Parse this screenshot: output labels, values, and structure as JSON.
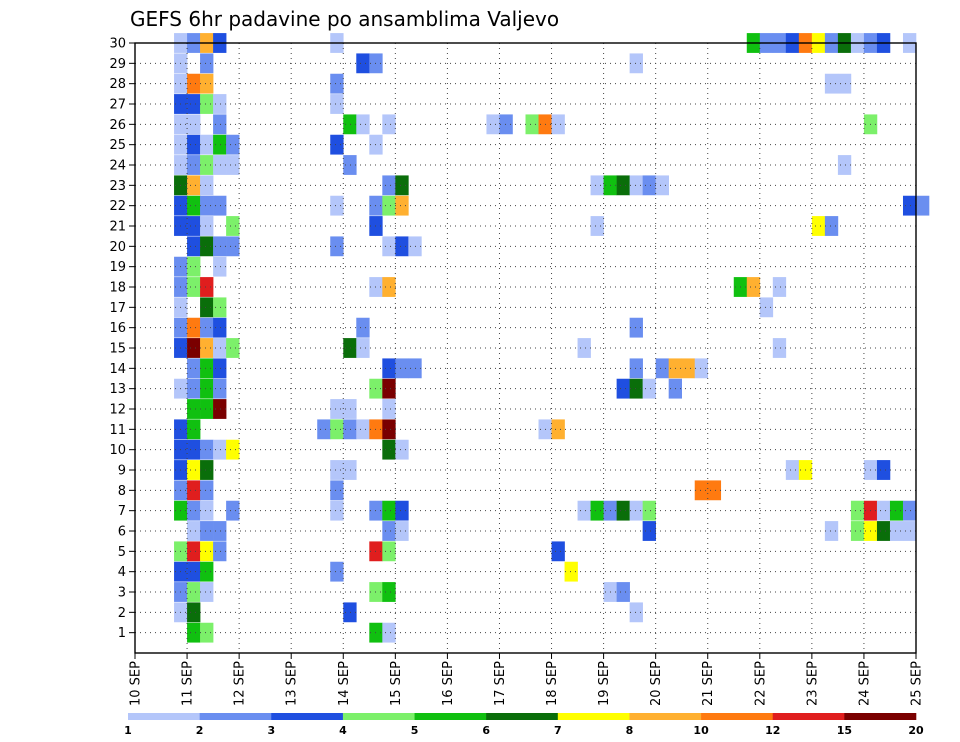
{
  "chart_data": {
    "type": "heatmap",
    "title": "GEFS 6hr padavine po ansamblima Valjevo",
    "x_tick_labels": [
      "10 SEP",
      "11 SEP",
      "12 SEP",
      "13 SEP",
      "14 SEP",
      "15 SEP",
      "16 SEP",
      "17 SEP",
      "18 SEP",
      "19 SEP",
      "20 SEP",
      "21 SEP",
      "22 SEP",
      "23 SEP",
      "24 SEP",
      "25 SEP"
    ],
    "y_tick_labels": [
      "1",
      "2",
      "3",
      "4",
      "5",
      "6",
      "7",
      "8",
      "9",
      "10",
      "11",
      "12",
      "13",
      "14",
      "15",
      "16",
      "17",
      "18",
      "19",
      "20",
      "21",
      "22",
      "23",
      "24",
      "25",
      "26",
      "27",
      "28",
      "29",
      "30"
    ],
    "xlim": [
      0,
      15
    ],
    "ylim": [
      0,
      30
    ],
    "grid": true,
    "colorbar": {
      "colors": [
        "#b4c6fa",
        "#6a8ef0",
        "#1f4fe0",
        "#7cf06a",
        "#10c010",
        "#0a6e0a",
        "#ffff00",
        "#ffb030",
        "#ff7a10",
        "#e01e1e",
        "#7a0000"
      ],
      "labels": [
        "1",
        "2",
        "3",
        "4",
        "5",
        "6",
        "7",
        "8",
        "10",
        "12",
        "15",
        "20"
      ]
    },
    "cells_note": "each cell: [x_day_offset_from_10_SEP, ensemble_member_row, precipitation_class_index]",
    "cells": [
      [
        0.75,
        30,
        0
      ],
      [
        1.0,
        30,
        1
      ],
      [
        1.25,
        30,
        7
      ],
      [
        1.5,
        30,
        2
      ],
      [
        3.75,
        30,
        0
      ],
      [
        11.75,
        30,
        4
      ],
      [
        12.0,
        30,
        1
      ],
      [
        12.25,
        30,
        1
      ],
      [
        12.5,
        30,
        2
      ],
      [
        12.75,
        30,
        8
      ],
      [
        13.0,
        30,
        6
      ],
      [
        13.25,
        30,
        1
      ],
      [
        13.5,
        30,
        5
      ],
      [
        13.75,
        30,
        0
      ],
      [
        14.0,
        30,
        1
      ],
      [
        14.25,
        30,
        2
      ],
      [
        14.75,
        30,
        0
      ],
      [
        0.75,
        29,
        0
      ],
      [
        1.25,
        29,
        1
      ],
      [
        4.25,
        29,
        2
      ],
      [
        4.5,
        29,
        1
      ],
      [
        9.5,
        29,
        0
      ],
      [
        0.75,
        28,
        0
      ],
      [
        1.0,
        28,
        8
      ],
      [
        1.25,
        28,
        7
      ],
      [
        3.75,
        28,
        1
      ],
      [
        13.25,
        28,
        0
      ],
      [
        13.5,
        28,
        0
      ],
      [
        0.75,
        27,
        2
      ],
      [
        1.0,
        27,
        2
      ],
      [
        1.25,
        27,
        3
      ],
      [
        1.5,
        27,
        0
      ],
      [
        3.75,
        27,
        0
      ],
      [
        0.75,
        26,
        0
      ],
      [
        1.0,
        26,
        0
      ],
      [
        1.5,
        26,
        1
      ],
      [
        4.0,
        26,
        4
      ],
      [
        4.25,
        26,
        0
      ],
      [
        4.75,
        26,
        0
      ],
      [
        6.75,
        26,
        0
      ],
      [
        7.0,
        26,
        1
      ],
      [
        7.5,
        26,
        3
      ],
      [
        7.75,
        26,
        8
      ],
      [
        8.0,
        26,
        0
      ],
      [
        14.0,
        26,
        3
      ],
      [
        0.75,
        25,
        0
      ],
      [
        1.0,
        25,
        2
      ],
      [
        1.25,
        25,
        0
      ],
      [
        1.5,
        25,
        4
      ],
      [
        1.75,
        25,
        1
      ],
      [
        3.75,
        25,
        2
      ],
      [
        4.5,
        25,
        0
      ],
      [
        0.75,
        24,
        0
      ],
      [
        1.0,
        24,
        1
      ],
      [
        1.25,
        24,
        3
      ],
      [
        1.5,
        24,
        0
      ],
      [
        1.75,
        24,
        0
      ],
      [
        4.0,
        24,
        1
      ],
      [
        13.5,
        24,
        0
      ],
      [
        0.75,
        23,
        5
      ],
      [
        1.0,
        23,
        7
      ],
      [
        1.25,
        23,
        0
      ],
      [
        4.75,
        23,
        1
      ],
      [
        5.0,
        23,
        5
      ],
      [
        8.75,
        23,
        0
      ],
      [
        9.0,
        23,
        4
      ],
      [
        9.25,
        23,
        5
      ],
      [
        9.5,
        23,
        0
      ],
      [
        9.75,
        23,
        1
      ],
      [
        10.0,
        23,
        0
      ],
      [
        0.75,
        22,
        2
      ],
      [
        1.0,
        22,
        4
      ],
      [
        1.25,
        22,
        1
      ],
      [
        1.5,
        22,
        1
      ],
      [
        3.75,
        22,
        0
      ],
      [
        4.5,
        22,
        1
      ],
      [
        4.75,
        22,
        3
      ],
      [
        5.0,
        22,
        7
      ],
      [
        14.75,
        22,
        2
      ],
      [
        15.0,
        22,
        1
      ],
      [
        0.75,
        21,
        2
      ],
      [
        1.0,
        21,
        2
      ],
      [
        1.25,
        21,
        0
      ],
      [
        1.75,
        21,
        3
      ],
      [
        4.5,
        21,
        2
      ],
      [
        8.75,
        21,
        0
      ],
      [
        13.0,
        21,
        6
      ],
      [
        13.25,
        21,
        1
      ],
      [
        1.0,
        20,
        2
      ],
      [
        1.25,
        20,
        5
      ],
      [
        1.5,
        20,
        1
      ],
      [
        1.75,
        20,
        1
      ],
      [
        3.75,
        20,
        1
      ],
      [
        4.75,
        20,
        0
      ],
      [
        5.0,
        20,
        2
      ],
      [
        5.25,
        20,
        0
      ],
      [
        0.75,
        19,
        1
      ],
      [
        1.0,
        19,
        3
      ],
      [
        1.5,
        19,
        0
      ],
      [
        0.75,
        18,
        1
      ],
      [
        1.0,
        18,
        3
      ],
      [
        1.25,
        18,
        9
      ],
      [
        4.5,
        18,
        0
      ],
      [
        4.75,
        18,
        7
      ],
      [
        11.5,
        18,
        4
      ],
      [
        11.75,
        18,
        7
      ],
      [
        12.25,
        18,
        0
      ],
      [
        0.75,
        17,
        0
      ],
      [
        1.25,
        17,
        5
      ],
      [
        1.5,
        17,
        3
      ],
      [
        12.0,
        17,
        0
      ],
      [
        0.75,
        16,
        1
      ],
      [
        1.0,
        16,
        8
      ],
      [
        1.25,
        16,
        1
      ],
      [
        1.5,
        16,
        2
      ],
      [
        4.25,
        16,
        1
      ],
      [
        9.5,
        16,
        1
      ],
      [
        0.75,
        15,
        2
      ],
      [
        1.0,
        15,
        10
      ],
      [
        1.25,
        15,
        7
      ],
      [
        1.5,
        15,
        0
      ],
      [
        1.75,
        15,
        3
      ],
      [
        4.0,
        15,
        5
      ],
      [
        4.25,
        15,
        0
      ],
      [
        8.5,
        15,
        0
      ],
      [
        12.25,
        15,
        0
      ],
      [
        1.0,
        14,
        1
      ],
      [
        1.25,
        14,
        4
      ],
      [
        1.5,
        14,
        2
      ],
      [
        4.75,
        14,
        2
      ],
      [
        5.0,
        14,
        1
      ],
      [
        5.25,
        14,
        1
      ],
      [
        9.5,
        14,
        1
      ],
      [
        10.0,
        14,
        1
      ],
      [
        10.25,
        14,
        7
      ],
      [
        10.5,
        14,
        7
      ],
      [
        10.75,
        14,
        0
      ],
      [
        0.75,
        13,
        0
      ],
      [
        1.0,
        13,
        1
      ],
      [
        1.25,
        13,
        4
      ],
      [
        1.5,
        13,
        1
      ],
      [
        4.5,
        13,
        3
      ],
      [
        4.75,
        13,
        10
      ],
      [
        9.25,
        13,
        2
      ],
      [
        9.5,
        13,
        5
      ],
      [
        9.75,
        13,
        0
      ],
      [
        10.25,
        13,
        1
      ],
      [
        1.0,
        12,
        4
      ],
      [
        1.25,
        12,
        4
      ],
      [
        1.5,
        12,
        10
      ],
      [
        3.75,
        12,
        0
      ],
      [
        4.0,
        12,
        0
      ],
      [
        4.75,
        12,
        0
      ],
      [
        0.75,
        11,
        2
      ],
      [
        1.0,
        11,
        4
      ],
      [
        3.5,
        11,
        1
      ],
      [
        3.75,
        11,
        3
      ],
      [
        4.0,
        11,
        1
      ],
      [
        4.25,
        11,
        0
      ],
      [
        4.5,
        11,
        8
      ],
      [
        4.75,
        11,
        10
      ],
      [
        7.75,
        11,
        0
      ],
      [
        8.0,
        11,
        7
      ],
      [
        0.75,
        10,
        2
      ],
      [
        1.0,
        10,
        2
      ],
      [
        1.25,
        10,
        1
      ],
      [
        1.5,
        10,
        0
      ],
      [
        1.75,
        10,
        6
      ],
      [
        4.75,
        10,
        5
      ],
      [
        5.0,
        10,
        0
      ],
      [
        0.75,
        9,
        2
      ],
      [
        1.0,
        9,
        6
      ],
      [
        1.25,
        9,
        5
      ],
      [
        3.75,
        9,
        0
      ],
      [
        4.0,
        9,
        0
      ],
      [
        12.5,
        9,
        0
      ],
      [
        12.75,
        9,
        6
      ],
      [
        14.0,
        9,
        0
      ],
      [
        14.25,
        9,
        2
      ],
      [
        0.75,
        8,
        1
      ],
      [
        1.0,
        8,
        9
      ],
      [
        1.25,
        8,
        1
      ],
      [
        3.75,
        8,
        1
      ],
      [
        10.75,
        8,
        8
      ],
      [
        11.0,
        8,
        8
      ],
      [
        0.75,
        7,
        4
      ],
      [
        1.0,
        7,
        1
      ],
      [
        1.25,
        7,
        0
      ],
      [
        1.75,
        7,
        1
      ],
      [
        3.75,
        7,
        0
      ],
      [
        4.5,
        7,
        1
      ],
      [
        4.75,
        7,
        4
      ],
      [
        5.0,
        7,
        2
      ],
      [
        8.5,
        7,
        0
      ],
      [
        8.75,
        7,
        4
      ],
      [
        9.0,
        7,
        1
      ],
      [
        9.25,
        7,
        5
      ],
      [
        9.5,
        7,
        0
      ],
      [
        9.75,
        7,
        3
      ],
      [
        13.75,
        7,
        3
      ],
      [
        14.0,
        7,
        9
      ],
      [
        14.25,
        7,
        0
      ],
      [
        14.5,
        7,
        4
      ],
      [
        14.75,
        7,
        1
      ],
      [
        1.0,
        6,
        0
      ],
      [
        1.25,
        6,
        1
      ],
      [
        1.5,
        6,
        1
      ],
      [
        4.75,
        6,
        1
      ],
      [
        5.0,
        6,
        0
      ],
      [
        9.75,
        6,
        2
      ],
      [
        13.25,
        6,
        0
      ],
      [
        13.75,
        6,
        3
      ],
      [
        14.0,
        6,
        6
      ],
      [
        14.25,
        6,
        5
      ],
      [
        14.5,
        6,
        0
      ],
      [
        14.75,
        6,
        0
      ],
      [
        0.75,
        5,
        3
      ],
      [
        1.0,
        5,
        9
      ],
      [
        1.25,
        5,
        6
      ],
      [
        1.5,
        5,
        1
      ],
      [
        4.5,
        5,
        9
      ],
      [
        4.75,
        5,
        3
      ],
      [
        8.0,
        5,
        2
      ],
      [
        0.75,
        4,
        2
      ],
      [
        1.0,
        4,
        2
      ],
      [
        1.25,
        4,
        4
      ],
      [
        3.75,
        4,
        1
      ],
      [
        8.25,
        4,
        6
      ],
      [
        0.75,
        3,
        1
      ],
      [
        1.0,
        3,
        3
      ],
      [
        1.25,
        3,
        0
      ],
      [
        4.5,
        3,
        3
      ],
      [
        4.75,
        3,
        4
      ],
      [
        9.0,
        3,
        0
      ],
      [
        9.25,
        3,
        1
      ],
      [
        0.75,
        2,
        0
      ],
      [
        1.0,
        2,
        5
      ],
      [
        4.0,
        2,
        2
      ],
      [
        9.5,
        2,
        0
      ],
      [
        1.0,
        1,
        4
      ],
      [
        1.25,
        1,
        3
      ],
      [
        4.5,
        1,
        4
      ],
      [
        4.75,
        1,
        0
      ]
    ]
  }
}
